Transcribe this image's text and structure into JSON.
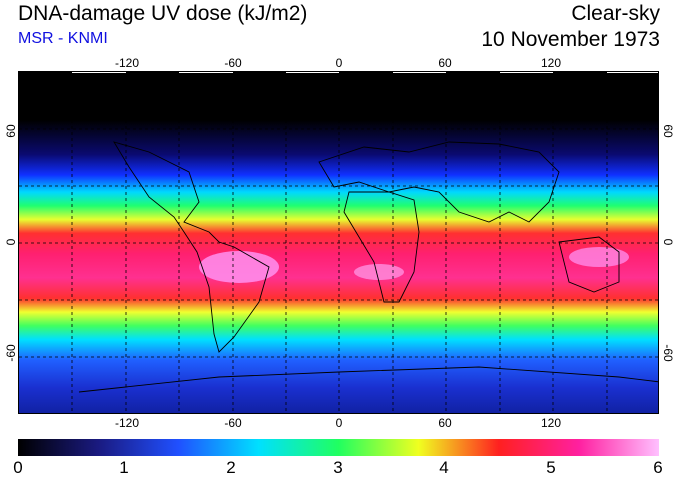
{
  "header": {
    "title": "DNA-damage UV dose (kJ/m2)",
    "subtitle": "MSR - KNMI",
    "condition": "Clear-sky",
    "date": "10 November 1973"
  },
  "map": {
    "lon_ticks": [
      "-120",
      "-60",
      "0",
      "60",
      "120"
    ],
    "lat_ticks_left": [
      "60",
      "0",
      "-60"
    ],
    "lat_ticks_right": [
      "60",
      "0",
      "-60"
    ],
    "gridlines": true
  },
  "colorbar": {
    "labels": [
      "0",
      "1",
      "2",
      "3",
      "4",
      "5",
      "6"
    ],
    "colors": [
      "#000000",
      "#1a1a80",
      "#2050ff",
      "#00e0ff",
      "#20ff60",
      "#f0ff20",
      "#ff2020",
      "#ff20a0",
      "#ffc0ff"
    ]
  }
}
